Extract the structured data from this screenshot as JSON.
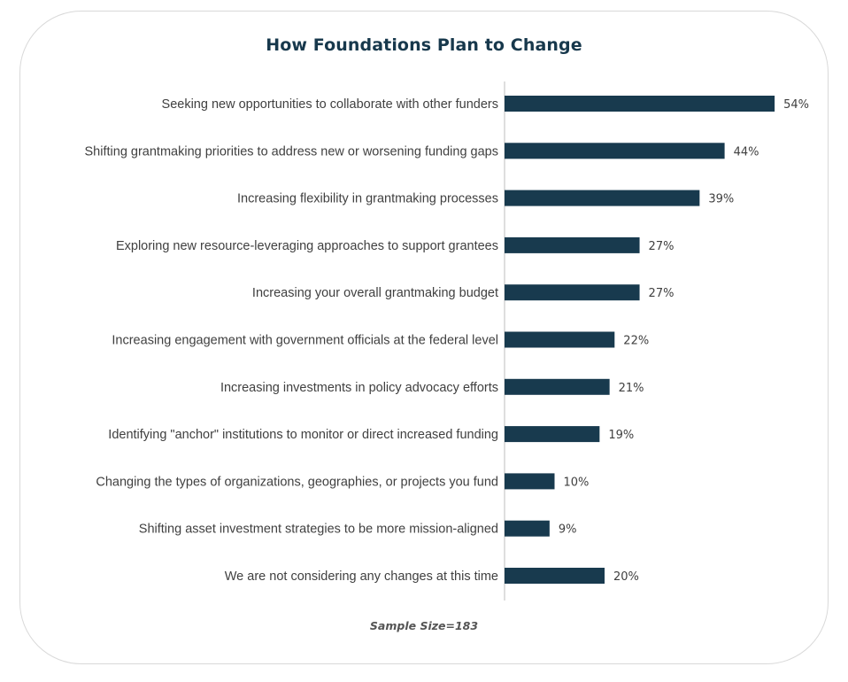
{
  "chart_data": {
    "type": "bar",
    "orientation": "horizontal",
    "title": "How Foundations Plan to Change",
    "footnote": "Sample Size=183",
    "categories": [
      "Seeking new opportunities to collaborate with other funders",
      "Shifting grantmaking priorities to address new or worsening funding gaps",
      "Increasing flexibility in grantmaking processes",
      "Exploring new resource-leveraging approaches to support grantees",
      "Increasing your overall grantmaking budget",
      "Increasing engagement with government officials at the federal level",
      "Increasing investments in policy advocacy efforts",
      "Identifying \"anchor\" institutions to monitor or direct increased funding",
      "Changing the types of organizations, geographies, or projects you fund",
      "Shifting asset investment strategies to be more mission-aligned",
      "We are not considering any changes at this time"
    ],
    "values": [
      54,
      44,
      39,
      27,
      27,
      22,
      21,
      19,
      10,
      9,
      20
    ],
    "value_labels": [
      "54%",
      "44%",
      "39%",
      "27%",
      "27%",
      "22%",
      "21%",
      "19%",
      "10%",
      "9%",
      "20%"
    ],
    "value_unit": "%",
    "xlim": [
      0,
      60
    ],
    "grid": false,
    "legend": "none",
    "bar_color": "#183a4e"
  }
}
